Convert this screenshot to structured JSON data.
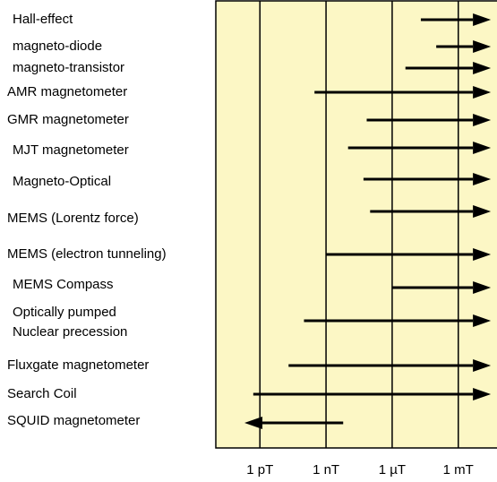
{
  "chart_data": {
    "type": "range",
    "xscale": "log",
    "xlim": [
      1e-14,
      0.1
    ],
    "xticks": [
      {
        "value": 1e-12,
        "label": "1 pT"
      },
      {
        "value": 1e-09,
        "label": "1 nT"
      },
      {
        "value": 1e-06,
        "label": "1 µT"
      },
      {
        "value": 0.001,
        "label": "1 mT"
      }
    ],
    "grid": true,
    "color": "#000000",
    "background": "#fcf7c5",
    "rows": [
      {
        "label": [
          "Hall-effect"
        ],
        "start": 2e-05,
        "end": 0.03
      },
      {
        "label": [
          "magneto-diode"
        ],
        "start": 0.0001,
        "end": 0.03
      },
      {
        "label": [
          "magneto-transistor"
        ],
        "start": 4e-06,
        "end": 0.03
      },
      {
        "label": [
          "AMR magnetometer"
        ],
        "start": 3e-10,
        "end": 0.03
      },
      {
        "label": [
          "GMR magnetometer"
        ],
        "start": 7e-08,
        "end": 0.03
      },
      {
        "label": [
          "MJT magnetometer"
        ],
        "start": 1e-08,
        "end": 0.03
      },
      {
        "label": [
          "Magneto-Optical"
        ],
        "start": 5e-08,
        "end": 0.03
      },
      {
        "label": [
          "MEMS (Lorentz force)"
        ],
        "start": 1e-07,
        "end": 0.03
      },
      {
        "label": [
          "MEMS (electron tunneling)"
        ],
        "start": 1e-09,
        "end": 0.03
      },
      {
        "label": [
          "MEMS Compass"
        ],
        "start": 1e-06,
        "end": 0.03
      },
      {
        "label": [
          "Optically pumped",
          "Nuclear precession"
        ],
        "start": 1e-10,
        "end": 0.03
      },
      {
        "label": [
          "Fluxgate magnetometer"
        ],
        "start": 2e-11,
        "end": 0.03
      },
      {
        "label": [
          "Search Coil"
        ],
        "start": 5e-13,
        "end": 0.03
      },
      {
        "label": [
          "SQUID magnetometer"
        ],
        "start": 6e-09,
        "end": 2e-13
      }
    ]
  }
}
